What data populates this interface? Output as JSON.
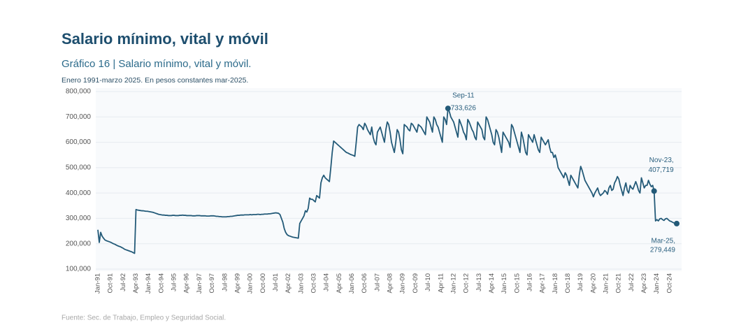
{
  "chart_data": {
    "type": "line",
    "title": "Salario mínimo, vital y móvil",
    "subtitle": "Gráfico 16 | Salario mínimo, vital y móvil.",
    "note": "Enero 1991-marzo 2025. En pesos constantes mar-2025.",
    "source": "Fuente: Sec. de Trabajo, Empleo y Seguridad Social.",
    "ylim": [
      100000,
      800000
    ],
    "yticks": [
      {
        "value": 100000,
        "label": "100,000"
      },
      {
        "value": 200000,
        "label": "200,000"
      },
      {
        "value": 300000,
        "label": "300,000"
      },
      {
        "value": 400000,
        "label": "400,000"
      },
      {
        "value": 500000,
        "label": "500,000"
      },
      {
        "value": 600000,
        "label": "600,000"
      },
      {
        "value": 700000,
        "label": "700,000"
      },
      {
        "value": 800000,
        "label": "800,000"
      }
    ],
    "grid": true,
    "categories": [
      "Jan-91",
      null,
      null,
      null,
      null,
      null,
      null,
      null,
      null,
      "Oct-91",
      null,
      null,
      null,
      null,
      null,
      null,
      null,
      null,
      "Jul-92",
      null,
      null,
      null,
      null,
      null,
      null,
      null,
      null,
      "Apr-93",
      null,
      null,
      null,
      null,
      null,
      null,
      null,
      null,
      "Jan-94",
      null,
      null,
      null,
      null,
      null,
      null,
      null,
      null,
      "Oct-94",
      null,
      null,
      null,
      null,
      null,
      null,
      null,
      null,
      "Jul-95",
      null,
      null,
      null,
      null,
      null,
      null,
      null,
      null,
      "Apr-96",
      null,
      null,
      null,
      null,
      null,
      null,
      null,
      null,
      "Jan-97",
      null,
      null,
      null,
      null,
      null,
      null,
      null,
      null,
      "Oct-97",
      null,
      null,
      null,
      null,
      null,
      null,
      null,
      null,
      "Jul-98",
      null,
      null,
      null,
      null,
      null,
      null,
      null,
      null,
      "Apr-99",
      null,
      null,
      null,
      null,
      null,
      null,
      null,
      null,
      "Jan-00",
      null,
      null,
      null,
      null,
      null,
      null,
      null,
      null,
      "Oct-00",
      null,
      null,
      null,
      null,
      null,
      null,
      null,
      null,
      "Jul-01",
      null,
      null,
      null,
      null,
      null,
      null,
      null,
      null,
      "Apr-02",
      null,
      null,
      null,
      null,
      null,
      null,
      null,
      null,
      "Jan-03",
      null,
      null,
      null,
      null,
      null,
      null,
      null,
      null,
      "Oct-03",
      null,
      null,
      null,
      null,
      null,
      null,
      null,
      null,
      "Jul-04",
      null,
      null,
      null,
      null,
      null,
      null,
      null,
      null,
      "Apr-05",
      null,
      null,
      null,
      null,
      null,
      null,
      null,
      null,
      "Jan-06",
      null,
      null,
      null,
      null,
      null,
      null,
      null,
      null,
      "Oct-06",
      null,
      null,
      null,
      null,
      null,
      null,
      null,
      null,
      "Jul-07",
      null,
      null,
      null,
      null,
      null,
      null,
      null,
      null,
      "Apr-08",
      null,
      null,
      null,
      null,
      null,
      null,
      null,
      null,
      "Jan-09",
      null,
      null,
      null,
      null,
      null,
      null,
      null,
      null,
      "Oct-09",
      null,
      null,
      null,
      null,
      null,
      null,
      null,
      null,
      "Jul-10",
      null,
      null,
      null,
      null,
      null,
      null,
      null,
      null,
      "Apr-11",
      null,
      null,
      null,
      null,
      null,
      null,
      null,
      null,
      "Jan-12",
      null,
      null,
      null,
      null,
      null,
      null,
      null,
      null,
      "Oct-12",
      null,
      null,
      null,
      null,
      null,
      null,
      null,
      null,
      "Jul-13",
      null,
      null,
      null,
      null,
      null,
      null,
      null,
      null,
      "Apr-14",
      null,
      null,
      null,
      null,
      null,
      null,
      null,
      null,
      "Jan-15",
      null,
      null,
      null,
      null,
      null,
      null,
      null,
      null,
      "Oct-15",
      null,
      null,
      null,
      null,
      null,
      null,
      null,
      null,
      "Jul-16",
      null,
      null,
      null,
      null,
      null,
      null,
      null,
      null,
      "Apr-17",
      null,
      null,
      null,
      null,
      null,
      null,
      null,
      null,
      "Jan-18",
      null,
      null,
      null,
      null,
      null,
      null,
      null,
      null,
      "Oct-18",
      null,
      null,
      null,
      null,
      null,
      null,
      null,
      null,
      "Jul-19",
      null,
      null,
      null,
      null,
      null,
      null,
      null,
      null,
      "Apr-20",
      null,
      null,
      null,
      null,
      null,
      null,
      null,
      null,
      "Jan-21",
      null,
      null,
      null,
      null,
      null,
      null,
      null,
      null,
      "Oct-21",
      null,
      null,
      null,
      null,
      null,
      null,
      null,
      null,
      "Jul-22",
      null,
      null,
      null,
      null,
      null,
      null,
      null,
      null,
      "Apr-23",
      null,
      null,
      null,
      null,
      null,
      null,
      null,
      null,
      "Jan-24",
      null,
      null,
      null,
      null,
      null,
      null,
      null,
      null,
      "Oct-24",
      null,
      null,
      null,
      null,
      null
    ],
    "series": [
      {
        "color": "#235a78",
        "values": [
          255000,
          205000,
          245000,
          230000,
          222000,
          215000,
          212000,
          210000,
          208000,
          206000,
          203000,
          200000,
          198000,
          195000,
          192000,
          190000,
          188000,
          185000,
          182000,
          178000,
          176000,
          174000,
          172000,
          170000,
          168000,
          165000,
          162000,
          335000,
          333000,
          332000,
          331000,
          330000,
          330000,
          329000,
          328000,
          328000,
          327000,
          326000,
          325000,
          324000,
          322000,
          320000,
          318000,
          316000,
          315000,
          314000,
          313000,
          313000,
          312000,
          312000,
          311000,
          311000,
          311000,
          312000,
          312000,
          311000,
          311000,
          311000,
          312000,
          312000,
          313000,
          312000,
          312000,
          311000,
          311000,
          311000,
          311000,
          310000,
          310000,
          310000,
          311000,
          311000,
          311000,
          310000,
          310000,
          310000,
          310000,
          309000,
          309000,
          309000,
          310000,
          310000,
          310000,
          309000,
          308000,
          308000,
          307000,
          307000,
          306000,
          306000,
          306000,
          306000,
          307000,
          307000,
          308000,
          308000,
          309000,
          310000,
          311000,
          312000,
          312000,
          313000,
          313000,
          313000,
          314000,
          314000,
          314000,
          314000,
          315000,
          314000,
          315000,
          315000,
          315000,
          316000,
          316000,
          315000,
          316000,
          316000,
          317000,
          317000,
          317000,
          318000,
          318000,
          319000,
          320000,
          321000,
          322000,
          321000,
          320000,
          315000,
          300000,
          285000,
          260000,
          245000,
          236000,
          232000,
          230000,
          228000,
          226000,
          225000,
          224000,
          223000,
          222000,
          280000,
          290000,
          300000,
          310000,
          330000,
          325000,
          340000,
          380000,
          375000,
          375000,
          370000,
          365000,
          390000,
          385000,
          380000,
          440000,
          460000,
          470000,
          460000,
          455000,
          450000,
          445000,
          500000,
          560000,
          605000,
          600000,
          595000,
          590000,
          585000,
          580000,
          575000,
          570000,
          565000,
          560000,
          558000,
          555000,
          552000,
          550000,
          548000,
          545000,
          600000,
          660000,
          670000,
          665000,
          660000,
          650000,
          675000,
          665000,
          650000,
          640000,
          630000,
          660000,
          620000,
          600000,
          590000,
          640000,
          650000,
          660000,
          640000,
          620000,
          600000,
          650000,
          680000,
          670000,
          640000,
          600000,
          580000,
          560000,
          600000,
          650000,
          640000,
          610000,
          570000,
          555000,
          670000,
          665000,
          660000,
          650000,
          645000,
          675000,
          670000,
          660000,
          650000,
          640000,
          670000,
          665000,
          660000,
          650000,
          640000,
          630000,
          700000,
          690000,
          680000,
          660000,
          640000,
          700000,
          690000,
          670000,
          660000,
          640000,
          620000,
          600000,
          700000,
          690000,
          670000,
          733626,
          720000,
          700000,
          690000,
          680000,
          660000,
          640000,
          620000,
          690000,
          675000,
          660000,
          640000,
          630000,
          610000,
          690000,
          680000,
          665000,
          650000,
          640000,
          620000,
          610000,
          680000,
          670000,
          660000,
          650000,
          620000,
          610000,
          700000,
          690000,
          670000,
          650000,
          630000,
          600000,
          590000,
          650000,
          640000,
          620000,
          590000,
          560000,
          640000,
          630000,
          620000,
          610000,
          600000,
          580000,
          670000,
          660000,
          640000,
          620000,
          600000,
          580000,
          560000,
          640000,
          620000,
          590000,
          560000,
          550000,
          630000,
          620000,
          610000,
          600000,
          630000,
          610000,
          590000,
          570000,
          560000,
          620000,
          610000,
          600000,
          590000,
          600000,
          610000,
          580000,
          560000,
          560000,
          540000,
          550000,
          530000,
          500000,
          490000,
          480000,
          470000,
          460000,
          480000,
          470000,
          450000,
          430000,
          470000,
          460000,
          450000,
          440000,
          430000,
          420000,
          470000,
          505000,
          490000,
          470000,
          450000,
          440000,
          430000,
          420000,
          410000,
          400000,
          385000,
          400000,
          410000,
          420000,
          400000,
          390000,
          395000,
          400000,
          410000,
          405000,
          395000,
          420000,
          430000,
          410000,
          415000,
          440000,
          450000,
          465000,
          455000,
          430000,
          410000,
          390000,
          420000,
          440000,
          410000,
          400000,
          430000,
          420000,
          415000,
          430000,
          445000,
          430000,
          410000,
          400000,
          460000,
          440000,
          420000,
          430000,
          430000,
          450000,
          435000,
          425000,
          430000,
          407719,
          290000,
          295000,
          290000,
          298000,
          300000,
          295000,
          292000,
          298000,
          300000,
          295000,
          290000,
          288000,
          285000,
          282000,
          280000,
          279449
        ]
      }
    ],
    "annotations": [
      {
        "text": "Sep-11",
        "value": 733626,
        "value_label": "733,626"
      },
      {
        "text": "Nov-23,",
        "value": 407719,
        "value_label": "407,719"
      },
      {
        "text": "Mar-25,",
        "value": 279449,
        "value_label": "279,449"
      }
    ]
  }
}
